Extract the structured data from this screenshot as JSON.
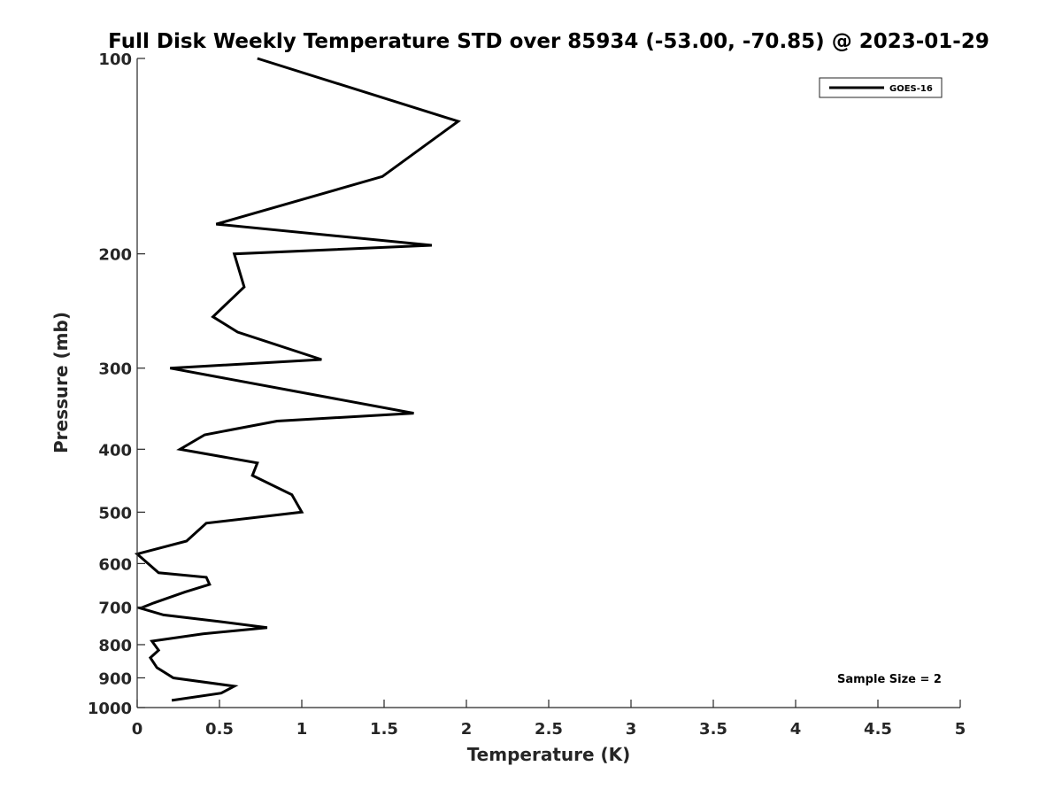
{
  "chart_data": {
    "type": "line",
    "title": "Full Disk Weekly Temperature STD over 85934 (-53.00, -70.85) @ 2023-01-29",
    "xlabel": "Temperature (K)",
    "ylabel": "Pressure (mb)",
    "xlim": [
      0,
      5
    ],
    "ylim": [
      100,
      1000
    ],
    "yscale": "log",
    "y_reversed": true,
    "xticks": [
      "0",
      "0.5",
      "1",
      "1.5",
      "2",
      "2.5",
      "3",
      "3.5",
      "4",
      "4.5",
      "5"
    ],
    "yticks": [
      "100",
      "200",
      "300",
      "400",
      "500",
      "600",
      "700",
      "800",
      "900",
      "1000"
    ],
    "grid": false,
    "legend_position": "top-right",
    "annotation": "Sample Size = 2",
    "series": [
      {
        "name": "GOES-16",
        "color": "#000000",
        "x": [
          0.73,
          1.95,
          1.49,
          0.48,
          1.79,
          0.59,
          0.65,
          0.46,
          0.61,
          1.12,
          0.2,
          1.68,
          0.85,
          0.41,
          0.26,
          0.73,
          0.7,
          0.94,
          1.0,
          0.42,
          0.3,
          0.0,
          0.13,
          0.42,
          0.44,
          0.29,
          0.1,
          0.02,
          0.16,
          0.5,
          0.79,
          0.4,
          0.09,
          0.13,
          0.08,
          0.12,
          0.22,
          0.59,
          0.51,
          0.21
        ],
        "y": [
          100,
          125,
          152,
          180,
          194,
          200,
          225,
          250,
          264,
          291,
          300,
          352,
          362,
          380,
          400,
          420,
          439,
          470,
          500,
          520,
          554,
          580,
          620,
          630,
          646,
          664,
          690,
          703,
          720,
          737,
          753,
          770,
          790,
          816,
          838,
          868,
          900,
          927,
          950,
          975
        ]
      }
    ]
  }
}
